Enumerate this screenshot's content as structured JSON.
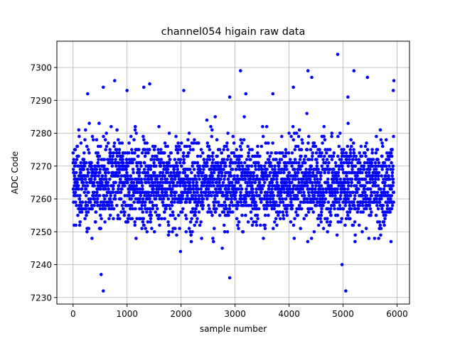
{
  "chart_data": {
    "type": "scatter",
    "title": "channel054 higain raw data",
    "xlabel": "sample number",
    "ylabel": "ADC Code",
    "xlim": [
      -300,
      6230
    ],
    "ylim": [
      7228,
      7308
    ],
    "xticks": [
      0,
      1000,
      2000,
      3000,
      4000,
      5000,
      6000
    ],
    "yticks": [
      7230,
      7240,
      7250,
      7260,
      7270,
      7280,
      7290,
      7300
    ],
    "grid": true,
    "marker_color": "#0000ff",
    "samples": 5940,
    "baseline": 7265,
    "outliers": [
      [
        4900,
        7304
      ],
      [
        5050,
        7232
      ],
      [
        560,
        7232
      ],
      [
        2900,
        7236
      ],
      [
        4980,
        7240
      ],
      [
        3100,
        7299
      ],
      [
        5200,
        7299
      ],
      [
        4350,
        7299
      ],
      [
        770,
        7296
      ],
      [
        5940,
        7296
      ],
      [
        1420,
        7295
      ],
      [
        560,
        7294
      ],
      [
        4080,
        7294
      ],
      [
        2050,
        7293
      ],
      [
        1000,
        7293
      ],
      [
        5930,
        7293
      ],
      [
        270,
        7292
      ],
      [
        5450,
        7297
      ],
      [
        4420,
        7297
      ],
      [
        3200,
        7292
      ],
      [
        2900,
        7291
      ],
      [
        5090,
        7291
      ],
      [
        1310,
        7294
      ],
      [
        3700,
        7292
      ],
      [
        520,
        7237
      ]
    ]
  }
}
